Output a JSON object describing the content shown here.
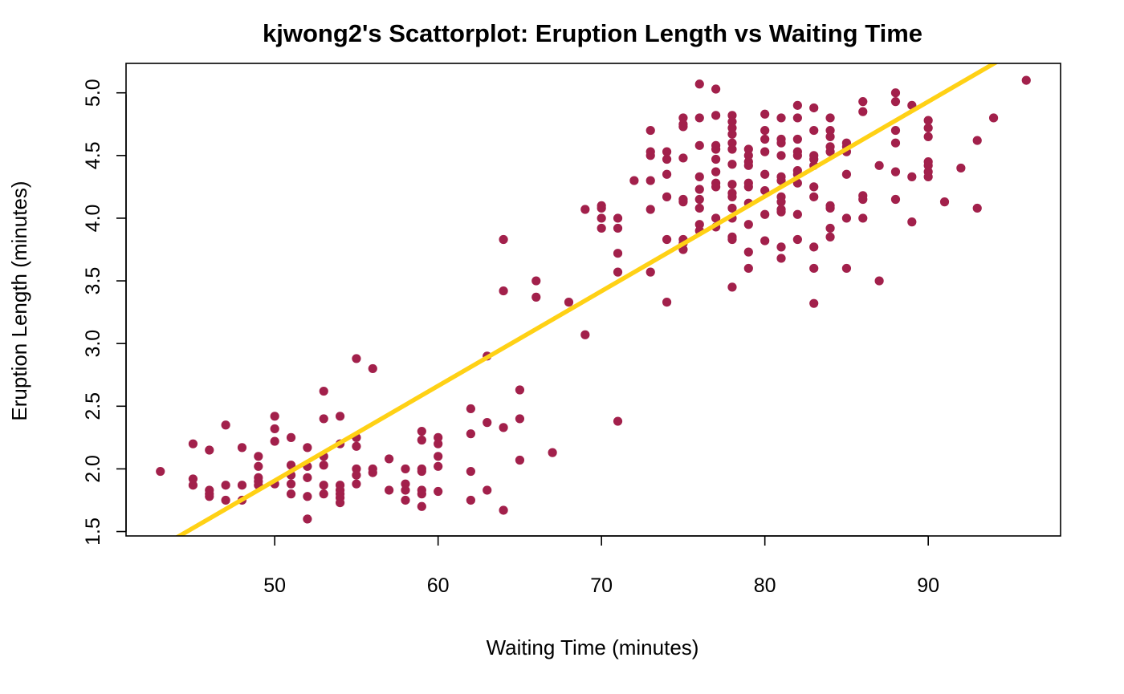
{
  "chart_data": {
    "type": "scatter",
    "title": "kjwong2's Scattorplot: Eruption Length vs Waiting Time",
    "xlabel": "Waiting Time (minutes)",
    "ylabel": "Eruption Length (minutes)",
    "xlim": [
      40.9,
      98.1
    ],
    "ylim": [
      1.465,
      5.235
    ],
    "x_ticks": [
      50,
      60,
      70,
      80,
      90
    ],
    "y_ticks": [
      1.5,
      2.0,
      2.5,
      3.0,
      3.5,
      4.0,
      4.5,
      5.0
    ],
    "x_tick_labels": [
      "50",
      "60",
      "70",
      "80",
      "90"
    ],
    "y_tick_labels": [
      "1.5",
      "2.0",
      "2.5",
      "3.0",
      "3.5",
      "4.0",
      "4.5",
      "5.0"
    ],
    "grid": false,
    "legend": "none",
    "point_color": "#A2204B",
    "line_color": "#FFD115",
    "regression_line": {
      "intercept": -1.874,
      "slope": 0.0756
    },
    "points": [
      [
        43,
        1.98
      ],
      [
        45,
        2.2
      ],
      [
        45,
        1.92
      ],
      [
        45,
        1.87
      ],
      [
        46,
        2.15
      ],
      [
        46,
        1.83
      ],
      [
        46,
        1.8
      ],
      [
        46,
        1.78
      ],
      [
        47,
        2.35
      ],
      [
        47,
        1.87
      ],
      [
        47,
        1.75
      ],
      [
        48,
        2.17
      ],
      [
        48,
        1.87
      ],
      [
        48,
        1.75
      ],
      [
        49,
        2.1
      ],
      [
        49,
        2.02
      ],
      [
        49,
        1.93
      ],
      [
        49,
        1.9
      ],
      [
        49,
        1.87
      ],
      [
        50,
        2.42
      ],
      [
        50,
        2.32
      ],
      [
        50,
        2.22
      ],
      [
        50,
        1.88
      ],
      [
        51,
        2.25
      ],
      [
        51,
        2.03
      ],
      [
        51,
        1.95
      ],
      [
        51,
        1.88
      ],
      [
        51,
        1.8
      ],
      [
        52,
        2.17
      ],
      [
        52,
        2.02
      ],
      [
        52,
        1.93
      ],
      [
        52,
        1.78
      ],
      [
        52,
        1.6
      ],
      [
        53,
        2.62
      ],
      [
        53,
        2.4
      ],
      [
        53,
        2.1
      ],
      [
        53,
        2.03
      ],
      [
        53,
        1.87
      ],
      [
        53,
        1.8
      ],
      [
        54,
        2.42
      ],
      [
        54,
        2.2
      ],
      [
        54,
        1.87
      ],
      [
        54,
        1.83
      ],
      [
        54,
        1.8
      ],
      [
        54,
        1.77
      ],
      [
        54,
        1.73
      ],
      [
        55,
        2.88
      ],
      [
        55,
        2.25
      ],
      [
        55,
        2.18
      ],
      [
        55,
        2.0
      ],
      [
        55,
        1.95
      ],
      [
        55,
        1.88
      ],
      [
        56,
        2.8
      ],
      [
        56,
        2.0
      ],
      [
        56,
        1.97
      ],
      [
        57,
        2.08
      ],
      [
        57,
        1.83
      ],
      [
        58,
        2.0
      ],
      [
        58,
        1.88
      ],
      [
        58,
        1.83
      ],
      [
        58,
        1.75
      ],
      [
        59,
        2.3
      ],
      [
        59,
        2.23
      ],
      [
        59,
        2.0
      ],
      [
        59,
        1.98
      ],
      [
        59,
        1.83
      ],
      [
        59,
        1.8
      ],
      [
        59,
        1.7
      ],
      [
        60,
        2.25
      ],
      [
        60,
        2.2
      ],
      [
        60,
        2.1
      ],
      [
        60,
        2.02
      ],
      [
        60,
        1.82
      ],
      [
        62,
        2.48
      ],
      [
        62,
        2.28
      ],
      [
        62,
        1.98
      ],
      [
        62,
        1.75
      ],
      [
        63,
        2.9
      ],
      [
        63,
        2.37
      ],
      [
        63,
        1.83
      ],
      [
        64,
        3.83
      ],
      [
        64,
        3.42
      ],
      [
        64,
        2.33
      ],
      [
        64,
        1.67
      ],
      [
        65,
        2.63
      ],
      [
        65,
        2.4
      ],
      [
        65,
        2.07
      ],
      [
        66,
        3.5
      ],
      [
        66,
        3.37
      ],
      [
        67,
        2.13
      ],
      [
        68,
        3.33
      ],
      [
        69,
        4.07
      ],
      [
        69,
        3.07
      ],
      [
        70,
        4.1
      ],
      [
        70,
        4.08
      ],
      [
        70,
        4.0
      ],
      [
        70,
        3.92
      ],
      [
        71,
        4.0
      ],
      [
        71,
        3.92
      ],
      [
        71,
        3.72
      ],
      [
        71,
        3.57
      ],
      [
        71,
        2.38
      ],
      [
        72,
        4.3
      ],
      [
        73,
        4.7
      ],
      [
        73,
        4.53
      ],
      [
        73,
        4.5
      ],
      [
        73,
        4.3
      ],
      [
        73,
        4.07
      ],
      [
        73,
        3.57
      ],
      [
        74,
        4.53
      ],
      [
        74,
        4.47
      ],
      [
        74,
        4.35
      ],
      [
        74,
        4.17
      ],
      [
        74,
        3.83
      ],
      [
        74,
        3.33
      ],
      [
        75,
        4.8
      ],
      [
        75,
        4.75
      ],
      [
        75,
        4.73
      ],
      [
        75,
        4.48
      ],
      [
        75,
        4.15
      ],
      [
        75,
        4.13
      ],
      [
        75,
        3.83
      ],
      [
        75,
        3.8
      ],
      [
        75,
        3.75
      ],
      [
        76,
        5.07
      ],
      [
        76,
        4.8
      ],
      [
        76,
        4.58
      ],
      [
        76,
        4.33
      ],
      [
        76,
        4.23
      ],
      [
        76,
        4.15
      ],
      [
        76,
        4.08
      ],
      [
        76,
        3.95
      ],
      [
        76,
        3.9
      ],
      [
        77,
        5.03
      ],
      [
        77,
        4.82
      ],
      [
        77,
        4.58
      ],
      [
        77,
        4.55
      ],
      [
        77,
        4.47
      ],
      [
        77,
        4.37
      ],
      [
        77,
        4.28
      ],
      [
        77,
        4.25
      ],
      [
        77,
        4.0
      ],
      [
        77,
        3.93
      ],
      [
        78,
        4.82
      ],
      [
        78,
        4.77
      ],
      [
        78,
        4.72
      ],
      [
        78,
        4.67
      ],
      [
        78,
        4.6
      ],
      [
        78,
        4.55
      ],
      [
        78,
        4.43
      ],
      [
        78,
        4.27
      ],
      [
        78,
        4.2
      ],
      [
        78,
        4.17
      ],
      [
        78,
        4.08
      ],
      [
        78,
        4.0
      ],
      [
        78,
        3.85
      ],
      [
        78,
        3.83
      ],
      [
        78,
        3.45
      ],
      [
        79,
        4.55
      ],
      [
        79,
        4.5
      ],
      [
        79,
        4.45
      ],
      [
        79,
        4.42
      ],
      [
        79,
        4.28
      ],
      [
        79,
        4.25
      ],
      [
        79,
        4.12
      ],
      [
        79,
        3.95
      ],
      [
        79,
        3.73
      ],
      [
        79,
        3.6
      ],
      [
        80,
        4.83
      ],
      [
        80,
        4.7
      ],
      [
        80,
        4.63
      ],
      [
        80,
        4.53
      ],
      [
        80,
        4.35
      ],
      [
        80,
        4.22
      ],
      [
        80,
        4.03
      ],
      [
        80,
        3.82
      ],
      [
        81,
        4.8
      ],
      [
        81,
        4.63
      ],
      [
        81,
        4.6
      ],
      [
        81,
        4.5
      ],
      [
        81,
        4.33
      ],
      [
        81,
        4.3
      ],
      [
        81,
        4.17
      ],
      [
        81,
        4.13
      ],
      [
        81,
        4.07
      ],
      [
        81,
        4.05
      ],
      [
        81,
        3.77
      ],
      [
        81,
        3.68
      ],
      [
        82,
        4.9
      ],
      [
        82,
        4.8
      ],
      [
        82,
        4.63
      ],
      [
        82,
        4.53
      ],
      [
        82,
        4.5
      ],
      [
        82,
        4.38
      ],
      [
        82,
        4.35
      ],
      [
        82,
        4.28
      ],
      [
        82,
        4.03
      ],
      [
        82,
        3.83
      ],
      [
        83,
        4.88
      ],
      [
        83,
        4.7
      ],
      [
        83,
        4.5
      ],
      [
        83,
        4.47
      ],
      [
        83,
        4.42
      ],
      [
        83,
        4.25
      ],
      [
        83,
        4.17
      ],
      [
        83,
        3.77
      ],
      [
        83,
        3.6
      ],
      [
        83,
        3.32
      ],
      [
        84,
        4.8
      ],
      [
        84,
        4.7
      ],
      [
        84,
        4.65
      ],
      [
        84,
        4.57
      ],
      [
        84,
        4.53
      ],
      [
        84,
        4.1
      ],
      [
        84,
        4.08
      ],
      [
        84,
        3.92
      ],
      [
        84,
        3.85
      ],
      [
        85,
        4.6
      ],
      [
        85,
        4.57
      ],
      [
        85,
        4.53
      ],
      [
        85,
        4.35
      ],
      [
        85,
        4.0
      ],
      [
        85,
        3.6
      ],
      [
        86,
        4.93
      ],
      [
        86,
        4.85
      ],
      [
        86,
        4.18
      ],
      [
        86,
        4.15
      ],
      [
        86,
        4.0
      ],
      [
        87,
        4.42
      ],
      [
        87,
        3.5
      ],
      [
        88,
        5.0
      ],
      [
        88,
        4.93
      ],
      [
        88,
        4.7
      ],
      [
        88,
        4.6
      ],
      [
        88,
        4.37
      ],
      [
        88,
        4.15
      ],
      [
        89,
        4.9
      ],
      [
        89,
        4.33
      ],
      [
        89,
        3.97
      ],
      [
        90,
        4.78
      ],
      [
        90,
        4.72
      ],
      [
        90,
        4.65
      ],
      [
        90,
        4.45
      ],
      [
        90,
        4.42
      ],
      [
        90,
        4.37
      ],
      [
        90,
        4.33
      ],
      [
        91,
        4.13
      ],
      [
        92,
        4.4
      ],
      [
        93,
        4.62
      ],
      [
        93,
        4.08
      ],
      [
        94,
        4.8
      ],
      [
        96,
        5.1
      ]
    ]
  }
}
